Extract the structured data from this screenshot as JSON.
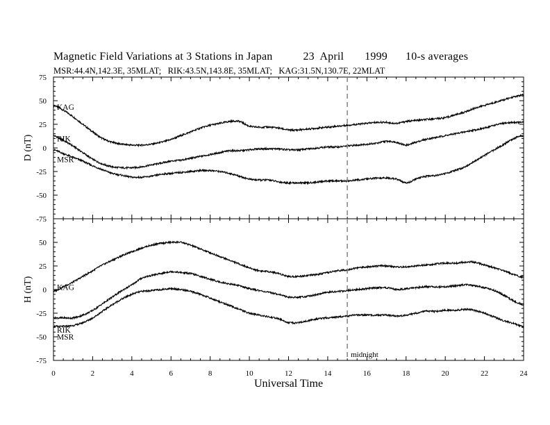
{
  "chart_data": {
    "type": "line",
    "title": {
      "main": "Magnetic Field Variations at 3 Stations in Japan",
      "date": "23  April",
      "year": "1999",
      "avg": "10-s averages"
    },
    "subtitle": "MSR:44.4N,142.3E, 35MLAT;   RIK:43.5N,143.8E, 35MLAT;   KAG:31.5N,130.7E, 22MLAT",
    "xlabel": "Universal Time",
    "xlim": [
      0,
      24
    ],
    "xticks": [
      "0",
      "2",
      "4",
      "6",
      "8",
      "10",
      "12",
      "14",
      "16",
      "18",
      "20",
      "22",
      "24"
    ],
    "annotation": {
      "text": "midnight",
      "x": 15
    },
    "panels": [
      {
        "ylabel": "D (nT)",
        "ylim": [
          -75,
          75
        ],
        "yticks": [
          "75",
          "50",
          "25",
          "0",
          "-25",
          "-50",
          "-75"
        ],
        "series": [
          {
            "name": "KAG",
            "x": [
              0,
              0.5,
              1,
              1.5,
              2,
              2.5,
              3,
              3.5,
              4,
              4.5,
              5,
              5.5,
              6,
              6.5,
              7,
              7.5,
              8,
              8.5,
              9,
              9.5,
              10,
              10.5,
              11,
              11.5,
              12,
              12.5,
              13,
              13.5,
              14,
              14.5,
              15,
              15.5,
              16,
              16.5,
              17,
              17.5,
              18,
              18.5,
              19,
              19.5,
              20,
              20.5,
              21,
              21.5,
              22,
              22.5,
              23,
              23.5,
              24
            ],
            "values": [
              45,
              40,
              33,
              25,
              17,
              10,
              6,
              4,
              3,
              3,
              4,
              6,
              9,
              13,
              17,
              21,
              24,
              26,
              28,
              28,
              23,
              22,
              22,
              21,
              19,
              19,
              20,
              21,
              22,
              23,
              24,
              25,
              26,
              27,
              27,
              26,
              28,
              29,
              30,
              31,
              32,
              35,
              38,
              42,
              45,
              48,
              51,
              54,
              56
            ]
          },
          {
            "name": "RIK",
            "x": [
              0,
              0.5,
              1,
              1.5,
              2,
              2.5,
              3,
              3.5,
              4,
              4.5,
              5,
              5.5,
              6,
              6.5,
              7,
              7.5,
              8,
              8.5,
              9,
              9.5,
              10,
              10.5,
              11,
              11.5,
              12,
              12.5,
              13,
              13.5,
              14,
              14.5,
              15,
              15.5,
              16,
              16.5,
              17,
              17.5,
              18,
              18.5,
              19,
              19.5,
              20,
              20.5,
              21,
              21.5,
              22,
              22.5,
              23,
              23.5,
              24
            ],
            "values": [
              13,
              8,
              2,
              -5,
              -12,
              -17,
              -20,
              -21,
              -21,
              -20,
              -18,
              -16,
              -14,
              -13,
              -11,
              -9,
              -7,
              -5,
              -3,
              -3,
              -2,
              -1,
              -1,
              -1,
              -2,
              -2,
              -1,
              0,
              1,
              1,
              2,
              3,
              4,
              5,
              7,
              6,
              3,
              6,
              9,
              11,
              13,
              15,
              17,
              19,
              21,
              24,
              26,
              27,
              27
            ]
          },
          {
            "name": "MSR",
            "x": [
              0,
              0.5,
              1,
              1.5,
              2,
              2.5,
              3,
              3.5,
              4,
              4.5,
              5,
              5.5,
              6,
              6.5,
              7,
              7.5,
              8,
              8.5,
              9,
              9.5,
              10,
              10.5,
              11,
              11.5,
              12,
              12.5,
              13,
              13.5,
              14,
              14.5,
              15,
              15.5,
              16,
              16.5,
              17,
              17.5,
              18,
              18.5,
              19,
              19.5,
              20,
              20.5,
              21,
              21.5,
              22,
              22.5,
              23,
              23.5,
              24
            ],
            "values": [
              -2,
              -6,
              -10,
              -14,
              -19,
              -23,
              -27,
              -29,
              -31,
              -31,
              -30,
              -28,
              -27,
              -26,
              -25,
              -24,
              -24,
              -25,
              -27,
              -30,
              -33,
              -34,
              -34,
              -36,
              -37,
              -37,
              -37,
              -36,
              -35,
              -35,
              -35,
              -34,
              -33,
              -32,
              -32,
              -33,
              -37,
              -33,
              -30,
              -29,
              -27,
              -24,
              -20,
              -14,
              -8,
              -2,
              4,
              10,
              13
            ]
          }
        ]
      },
      {
        "ylabel": "H (nT)",
        "ylim": [
          -75,
          75
        ],
        "yticks": [
          "",
          "50",
          "25",
          "0",
          "-25",
          "-50",
          "-75"
        ],
        "series": [
          {
            "name": "KAG",
            "x": [
              0,
              0.5,
              1,
              1.5,
              2,
              2.5,
              3,
              3.5,
              4,
              4.5,
              5,
              5.5,
              6,
              6.5,
              7,
              7.5,
              8,
              8.5,
              9,
              9.5,
              10,
              10.5,
              11,
              11.5,
              12,
              12.5,
              13,
              13.5,
              14,
              14.5,
              15,
              15.5,
              16,
              16.5,
              17,
              17.5,
              18,
              18.5,
              19,
              19.5,
              20,
              20.5,
              21,
              21.5,
              22,
              22.5,
              23,
              23.5,
              24
            ],
            "values": [
              -2,
              3,
              8,
              14,
              20,
              26,
              31,
              36,
              40,
              44,
              47,
              49,
              50,
              50,
              47,
              43,
              39,
              35,
              31,
              27,
              23,
              20,
              19,
              17,
              14,
              14,
              15,
              16,
              18,
              20,
              21,
              23,
              24,
              25,
              25,
              24,
              24,
              25,
              26,
              27,
              28,
              28,
              29,
              29,
              26,
              23,
              20,
              16,
              13
            ]
          },
          {
            "name": "RIK",
            "x": [
              0,
              0.5,
              1,
              1.5,
              2,
              2.5,
              3,
              3.5,
              4,
              4.5,
              5,
              5.5,
              6,
              6.5,
              7,
              7.5,
              8,
              8.5,
              9,
              9.5,
              10,
              10.5,
              11,
              11.5,
              12,
              12.5,
              13,
              13.5,
              14,
              14.5,
              15,
              15.5,
              16,
              16.5,
              17,
              17.5,
              18,
              18.5,
              19,
              19.5,
              20,
              20.5,
              21,
              21.5,
              22,
              22.5,
              23,
              23.5,
              24
            ],
            "values": [
              -30,
              -30,
              -30,
              -27,
              -22,
              -15,
              -8,
              -1,
              5,
              12,
              15,
              17,
              19,
              18,
              17,
              14,
              11,
              8,
              6,
              4,
              1,
              -1,
              -3,
              -5,
              -8,
              -8,
              -7,
              -5,
              -3,
              -2,
              -1,
              0,
              1,
              2,
              2,
              0,
              1,
              2,
              3,
              3,
              3,
              4,
              5,
              4,
              2,
              -1,
              -6,
              -12,
              -16
            ]
          },
          {
            "name": "MSR",
            "x": [
              0,
              0.5,
              1,
              1.5,
              2,
              2.5,
              3,
              3.5,
              4,
              4.5,
              5,
              5.5,
              6,
              6.5,
              7,
              7.5,
              8,
              8.5,
              9,
              9.5,
              10,
              10.5,
              11,
              11.5,
              12,
              12.5,
              13,
              13.5,
              14,
              14.5,
              15,
              15.5,
              16,
              16.5,
              17,
              17.5,
              18,
              18.5,
              19,
              19.5,
              20,
              20.5,
              21,
              21.5,
              22,
              22.5,
              23,
              23.5,
              24
            ],
            "values": [
              -39,
              -39,
              -38,
              -35,
              -30,
              -23,
              -16,
              -10,
              -5,
              -2,
              -1,
              0,
              1,
              0,
              -2,
              -5,
              -9,
              -13,
              -17,
              -21,
              -25,
              -27,
              -29,
              -31,
              -35,
              -35,
              -33,
              -31,
              -30,
              -29,
              -28,
              -27,
              -27,
              -27,
              -27,
              -28,
              -27,
              -25,
              -23,
              -23,
              -22,
              -22,
              -21,
              -22,
              -25,
              -29,
              -33,
              -36,
              -39
            ]
          }
        ]
      }
    ]
  }
}
